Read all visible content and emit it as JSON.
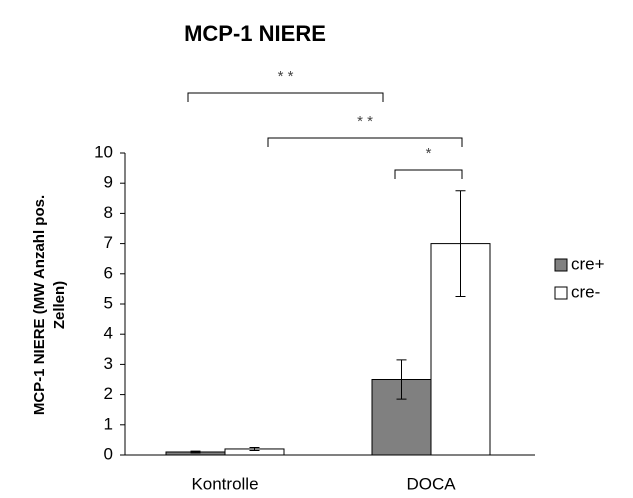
{
  "chart_data": {
    "type": "bar",
    "title": "MCP-1 NIERE",
    "ylabel": [
      "MCP-1 NIERE (MW Anzahl pos.",
      "Zellen)"
    ],
    "categories": [
      "Kontrolle",
      "DOCA"
    ],
    "series": [
      {
        "name": "cre+",
        "color": "#808080",
        "values": [
          0.1,
          2.5
        ],
        "errors": [
          0.03,
          0.65
        ]
      },
      {
        "name": "cre-",
        "color": "#ffffff",
        "values": [
          0.2,
          7.0
        ],
        "errors": [
          0.05,
          1.75
        ]
      }
    ],
    "ylim": [
      0,
      10
    ],
    "yticks": [
      0,
      1,
      2,
      3,
      4,
      5,
      6,
      7,
      8,
      9,
      10
    ],
    "annotations": [
      {
        "text": "* *"
      },
      {
        "text": "* *"
      },
      {
        "text": "*"
      }
    ],
    "legend": "right"
  }
}
